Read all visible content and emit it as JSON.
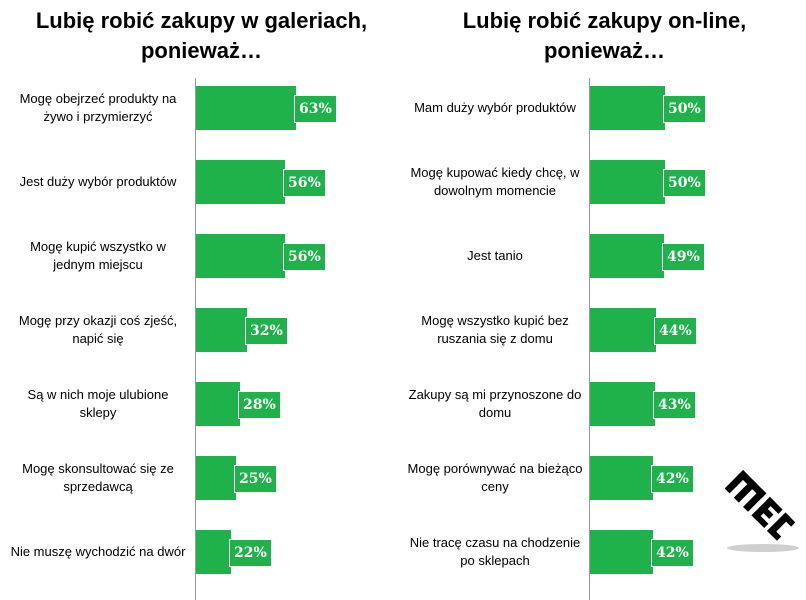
{
  "chart_data": [
    {
      "type": "bar",
      "orientation": "horizontal",
      "title_lines": [
        "Lubię robić zakupy w galeriach,",
        "ponieważ…"
      ],
      "categories": [
        "Mogę obejrzeć produkty na żywo i przymierzyć",
        "Jest duży wybór produktów",
        "Mogę kupić wszystko w jednym miejscu",
        "Mogę przy okazji coś zjeść, napić się",
        "Są w nich moje ulubione sklepy",
        "Mogę skonsultować się ze sprzedawcą",
        "Nie muszę wychodzić na dwór"
      ],
      "values": [
        63,
        56,
        56,
        32,
        28,
        25,
        22
      ],
      "value_labels": [
        "63%",
        "56%",
        "56%",
        "32%",
        "28%",
        "25%",
        "22%"
      ],
      "bar_color": "#1fb24a"
    },
    {
      "type": "bar",
      "orientation": "horizontal",
      "title_lines": [
        "Lubię robić zakupy on-line,",
        "ponieważ…"
      ],
      "categories": [
        "Mam duży wybór produktów",
        "Mogę kupować kiedy chcę, w dowolnym momencie",
        "Jest tanio",
        "Mogę wszystko kupić bez ruszania się z domu",
        "Zakupy są mi przynoszone do domu",
        "Mogę porównywać na bieżąco ceny",
        "Nie tracę czasu na chodzenie po sklepach"
      ],
      "values": [
        50,
        50,
        49,
        44,
        43,
        42,
        42
      ],
      "value_labels": [
        "50%",
        "50%",
        "49%",
        "44%",
        "43%",
        "42%",
        "42%"
      ],
      "bar_color": "#1fb24a"
    }
  ],
  "logo": {
    "text": "MEC",
    "color": "#000000"
  }
}
